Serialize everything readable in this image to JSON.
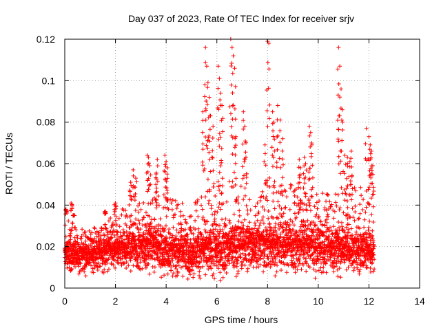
{
  "chart_data": {
    "type": "scatter",
    "title": "Day 037 of 2023, Rate Of TEC Index for receiver srjv",
    "xlabel": "GPS time / hours",
    "ylabel": "ROTI / TECUs",
    "xlim": [
      0,
      14
    ],
    "ylim": [
      0,
      0.12
    ],
    "xticks": [
      "0",
      "2",
      "4",
      "6",
      "8",
      "10",
      "12",
      "14"
    ],
    "yticks": [
      "0",
      "0.02",
      "0.04",
      "0.06",
      "0.08",
      "0.1",
      "0.12"
    ],
    "grid": true,
    "marker": "+",
    "color": "#ff0000",
    "series_description": "ROTI samples every ~0.02 h from 0 to 12.2 h",
    "baseline_envelope": [
      {
        "x": 0.0,
        "low": 0.008,
        "median": 0.016,
        "high": 0.036
      },
      {
        "x": 0.5,
        "low": 0.008,
        "median": 0.016,
        "high": 0.03
      },
      {
        "x": 1.0,
        "low": 0.007,
        "median": 0.016,
        "high": 0.028
      },
      {
        "x": 1.5,
        "low": 0.007,
        "median": 0.017,
        "high": 0.032
      },
      {
        "x": 2.0,
        "low": 0.008,
        "median": 0.018,
        "high": 0.036
      },
      {
        "x": 2.5,
        "low": 0.009,
        "median": 0.019,
        "high": 0.04
      },
      {
        "x": 3.0,
        "low": 0.009,
        "median": 0.02,
        "high": 0.043
      },
      {
        "x": 3.5,
        "low": 0.008,
        "median": 0.02,
        "high": 0.045
      },
      {
        "x": 4.0,
        "low": 0.006,
        "median": 0.018,
        "high": 0.044
      },
      {
        "x": 4.5,
        "low": 0.006,
        "median": 0.017,
        "high": 0.042
      },
      {
        "x": 5.0,
        "low": 0.006,
        "median": 0.017,
        "high": 0.04
      },
      {
        "x": 5.5,
        "low": 0.006,
        "median": 0.018,
        "high": 0.046
      },
      {
        "x": 6.0,
        "low": 0.006,
        "median": 0.018,
        "high": 0.05
      },
      {
        "x": 6.5,
        "low": 0.007,
        "median": 0.019,
        "high": 0.052
      },
      {
        "x": 7.0,
        "low": 0.008,
        "median": 0.02,
        "high": 0.05
      },
      {
        "x": 7.5,
        "low": 0.008,
        "median": 0.02,
        "high": 0.048
      },
      {
        "x": 8.0,
        "low": 0.008,
        "median": 0.021,
        "high": 0.052
      },
      {
        "x": 8.5,
        "low": 0.008,
        "median": 0.021,
        "high": 0.052
      },
      {
        "x": 9.0,
        "low": 0.008,
        "median": 0.02,
        "high": 0.05
      },
      {
        "x": 9.5,
        "low": 0.008,
        "median": 0.02,
        "high": 0.05
      },
      {
        "x": 10.0,
        "low": 0.007,
        "median": 0.019,
        "high": 0.046
      },
      {
        "x": 10.5,
        "low": 0.007,
        "median": 0.019,
        "high": 0.046
      },
      {
        "x": 11.0,
        "low": 0.007,
        "median": 0.019,
        "high": 0.048
      },
      {
        "x": 11.5,
        "low": 0.006,
        "median": 0.018,
        "high": 0.05
      },
      {
        "x": 12.0,
        "low": 0.008,
        "median": 0.018,
        "high": 0.052
      },
      {
        "x": 12.2,
        "low": 0.008,
        "median": 0.018,
        "high": 0.05
      }
    ],
    "peaks": [
      {
        "x": 0.05,
        "y": 0.038
      },
      {
        "x": 0.25,
        "y": 0.041
      },
      {
        "x": 0.35,
        "y": 0.035
      },
      {
        "x": 1.6,
        "y": 0.037
      },
      {
        "x": 2.0,
        "y": 0.041
      },
      {
        "x": 2.6,
        "y": 0.051
      },
      {
        "x": 2.7,
        "y": 0.057
      },
      {
        "x": 2.8,
        "y": 0.053
      },
      {
        "x": 3.25,
        "y": 0.064
      },
      {
        "x": 3.3,
        "y": 0.063
      },
      {
        "x": 3.35,
        "y": 0.059
      },
      {
        "x": 3.6,
        "y": 0.055
      },
      {
        "x": 3.65,
        "y": 0.062
      },
      {
        "x": 3.95,
        "y": 0.064
      },
      {
        "x": 4.0,
        "y": 0.061
      },
      {
        "x": 4.05,
        "y": 0.058
      },
      {
        "x": 5.45,
        "y": 0.085
      },
      {
        "x": 5.55,
        "y": 0.116
      },
      {
        "x": 5.6,
        "y": 0.107
      },
      {
        "x": 5.65,
        "y": 0.099
      },
      {
        "x": 5.7,
        "y": 0.092
      },
      {
        "x": 5.75,
        "y": 0.083
      },
      {
        "x": 5.85,
        "y": 0.078
      },
      {
        "x": 6.05,
        "y": 0.107
      },
      {
        "x": 6.1,
        "y": 0.101
      },
      {
        "x": 6.15,
        "y": 0.094
      },
      {
        "x": 6.2,
        "y": 0.088
      },
      {
        "x": 6.55,
        "y": 0.12
      },
      {
        "x": 6.6,
        "y": 0.116
      },
      {
        "x": 6.65,
        "y": 0.112
      },
      {
        "x": 6.7,
        "y": 0.106
      },
      {
        "x": 6.75,
        "y": 0.073
      },
      {
        "x": 7.05,
        "y": 0.085
      },
      {
        "x": 7.1,
        "y": 0.078
      },
      {
        "x": 7.15,
        "y": 0.07
      },
      {
        "x": 7.9,
        "y": 0.069
      },
      {
        "x": 8.0,
        "y": 0.119
      },
      {
        "x": 8.05,
        "y": 0.118
      },
      {
        "x": 8.2,
        "y": 0.085
      },
      {
        "x": 8.25,
        "y": 0.08
      },
      {
        "x": 8.4,
        "y": 0.088
      },
      {
        "x": 8.5,
        "y": 0.081
      },
      {
        "x": 8.6,
        "y": 0.072
      },
      {
        "x": 9.25,
        "y": 0.062
      },
      {
        "x": 9.3,
        "y": 0.058
      },
      {
        "x": 9.45,
        "y": 0.063
      },
      {
        "x": 9.5,
        "y": 0.06
      },
      {
        "x": 9.65,
        "y": 0.078
      },
      {
        "x": 9.7,
        "y": 0.075
      },
      {
        "x": 9.75,
        "y": 0.069
      },
      {
        "x": 10.8,
        "y": 0.116
      },
      {
        "x": 10.85,
        "y": 0.107
      },
      {
        "x": 10.9,
        "y": 0.096
      },
      {
        "x": 10.95,
        "y": 0.086
      },
      {
        "x": 10.82,
        "y": 0.083
      },
      {
        "x": 11.05,
        "y": 0.064
      },
      {
        "x": 11.15,
        "y": 0.063
      },
      {
        "x": 11.25,
        "y": 0.061
      },
      {
        "x": 11.3,
        "y": 0.066
      },
      {
        "x": 11.9,
        "y": 0.077
      },
      {
        "x": 12.0,
        "y": 0.073
      },
      {
        "x": 12.05,
        "y": 0.069
      },
      {
        "x": 12.1,
        "y": 0.066
      },
      {
        "x": 12.15,
        "y": 0.059
      }
    ],
    "sample_interval_hours": 0.02,
    "x_end": 12.2
  }
}
